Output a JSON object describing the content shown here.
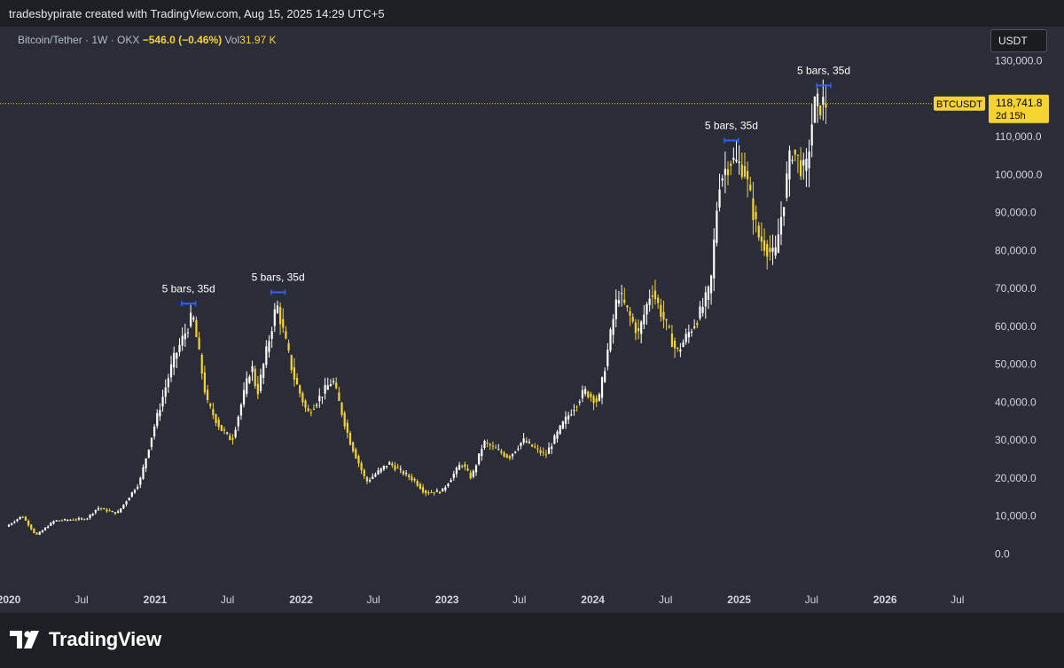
{
  "header": {
    "attribution": "tradesbypirate created with TradingView.com, Aug 15, 2025 14:29 UTC+5"
  },
  "legend": {
    "symbol": "Bitcoin/Tether · 1W · OKX",
    "change": "−546.0 (−0.46%)",
    "volume_label": "Vol",
    "volume_value": "31.97 K"
  },
  "currency": "USDT",
  "branding": {
    "logo_text": "TradingView"
  },
  "colors": {
    "background": "#2a2d38",
    "up_candle": "#ffffff",
    "down_candle": "#f5d432",
    "range_marker": "#2962ff",
    "price_line": "#f5d432"
  },
  "chart_data": {
    "type": "candlestick",
    "title": "Bitcoin/Tether · 1W · OKX",
    "interval": "1W",
    "ylim": [
      0,
      130000
    ],
    "y_ticks": [
      "130,000.0",
      "120,000.0",
      "110,000.0",
      "100,000.0",
      "90,000.0",
      "80,000.0",
      "70,000.0",
      "60,000.0",
      "50,000.0",
      "40,000.0",
      "30,000.0",
      "20,000.0",
      "10,000.0",
      "0.0"
    ],
    "x_labels": [
      {
        "label": "2020",
        "date": "2020-01-01"
      },
      {
        "label": "Jul",
        "date": "2020-07-01"
      },
      {
        "label": "2021",
        "date": "2021-01-01"
      },
      {
        "label": "Jul",
        "date": "2021-07-01"
      },
      {
        "label": "2022",
        "date": "2022-01-01"
      },
      {
        "label": "Jul",
        "date": "2022-07-01"
      },
      {
        "label": "2023",
        "date": "2023-01-01"
      },
      {
        "label": "Jul",
        "date": "2023-07-01"
      },
      {
        "label": "2024",
        "date": "2024-01-01"
      },
      {
        "label": "Jul",
        "date": "2024-07-01"
      },
      {
        "label": "2025",
        "date": "2025-01-01"
      },
      {
        "label": "Jul",
        "date": "2025-07-01"
      },
      {
        "label": "2026",
        "date": "2026-01-01"
      },
      {
        "label": "Jul",
        "date": "2026-07-01"
      }
    ],
    "price_path": [
      [
        "2020-01-01",
        7200
      ],
      [
        "2020-02-10",
        10100
      ],
      [
        "2020-03-16",
        4900
      ],
      [
        "2020-05-01",
        8800
      ],
      [
        "2020-07-20",
        9300
      ],
      [
        "2020-08-17",
        12200
      ],
      [
        "2020-10-05",
        10700
      ],
      [
        "2020-11-30",
        19000
      ],
      [
        "2021-01-04",
        33000
      ],
      [
        "2021-02-22",
        51000
      ],
      [
        "2021-04-12",
        63000
      ],
      [
        "2021-05-17",
        40000
      ],
      [
        "2021-06-21",
        33000
      ],
      [
        "2021-07-19",
        30000
      ],
      [
        "2021-09-06",
        50000
      ],
      [
        "2021-09-20",
        42000
      ],
      [
        "2021-11-08",
        66000
      ],
      [
        "2021-12-20",
        47000
      ],
      [
        "2022-01-24",
        37000
      ],
      [
        "2022-03-28",
        46000
      ],
      [
        "2022-05-09",
        30000
      ],
      [
        "2022-06-20",
        19000
      ],
      [
        "2022-08-15",
        24000
      ],
      [
        "2022-10-17",
        19500
      ],
      [
        "2022-11-14",
        16200
      ],
      [
        "2022-12-26",
        16500
      ],
      [
        "2023-02-13",
        24000
      ],
      [
        "2023-03-10",
        20000
      ],
      [
        "2023-04-10",
        29500
      ],
      [
        "2023-06-12",
        25500
      ],
      [
        "2023-07-17",
        30000
      ],
      [
        "2023-09-11",
        26000
      ],
      [
        "2023-10-23",
        34000
      ],
      [
        "2023-12-18",
        43000
      ],
      [
        "2024-01-22",
        40000
      ],
      [
        "2024-03-11",
        69000
      ],
      [
        "2024-05-01",
        58000
      ],
      [
        "2024-06-03",
        70000
      ],
      [
        "2024-08-05",
        53000
      ],
      [
        "2024-09-30",
        63000
      ],
      [
        "2024-10-28",
        70000
      ],
      [
        "2024-11-18",
        98000
      ],
      [
        "2024-12-16",
        104000
      ],
      [
        "2025-01-20",
        102000
      ],
      [
        "2025-02-24",
        84000
      ],
      [
        "2025-04-07",
        78000
      ],
      [
        "2025-05-19",
        107000
      ],
      [
        "2025-06-23",
        100000
      ],
      [
        "2025-07-14",
        118000
      ],
      [
        "2025-08-11",
        118741.8
      ]
    ],
    "annotations": [
      {
        "text": "5 bars, 35d",
        "start": "2021-03-08",
        "end": "2021-04-12",
        "price": 66000
      },
      {
        "text": "5 bars, 35d",
        "start": "2021-10-18",
        "end": "2021-11-22",
        "price": 69000
      },
      {
        "text": "5 bars, 35d",
        "start": "2024-11-25",
        "end": "2024-12-30",
        "price": 109000
      },
      {
        "text": "5 bars, 35d",
        "start": "2025-07-14",
        "end": "2025-08-18",
        "price": 123500
      }
    ],
    "last_price": {
      "symbol": "BTCUSDT",
      "value": "118,741.8",
      "countdown": "2d 15h",
      "price": 118741.8
    }
  }
}
